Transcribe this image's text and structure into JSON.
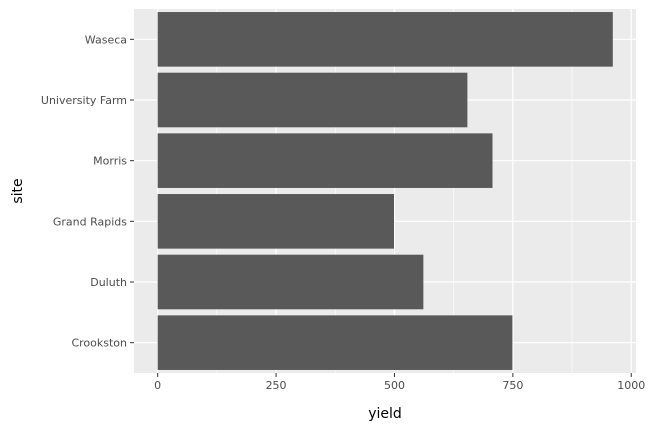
{
  "chart_data": {
    "type": "bar",
    "orientation": "horizontal",
    "categories": [
      "Crookston",
      "Duluth",
      "Grand Rapids",
      "Morris",
      "University Farm",
      "Waseca"
    ],
    "values": [
      749,
      561,
      499,
      707,
      654,
      961
    ],
    "xlabel": "yield",
    "ylabel": "site",
    "xlim": [
      -50,
      1010
    ],
    "x_ticks": [
      0,
      250,
      500,
      750,
      1000
    ],
    "grid": true
  },
  "colors": {
    "bar": "#595959",
    "panel_background": "#ebebeb",
    "grid_major": "#ffffff",
    "tick_mark": "#333333"
  }
}
